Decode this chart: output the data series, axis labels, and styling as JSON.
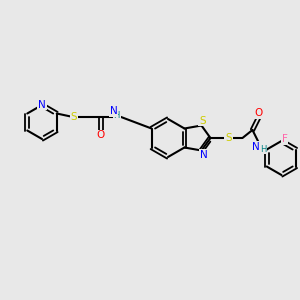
{
  "background_color": "#e8e8e8",
  "bond_color": "#000000",
  "atom_colors": {
    "N": "#0000ff",
    "O": "#ff0000",
    "S": "#cccc00",
    "F": "#ff66aa",
    "H": "#008080",
    "C": "#000000"
  },
  "figsize": [
    3.0,
    3.0
  ],
  "dpi": 100
}
